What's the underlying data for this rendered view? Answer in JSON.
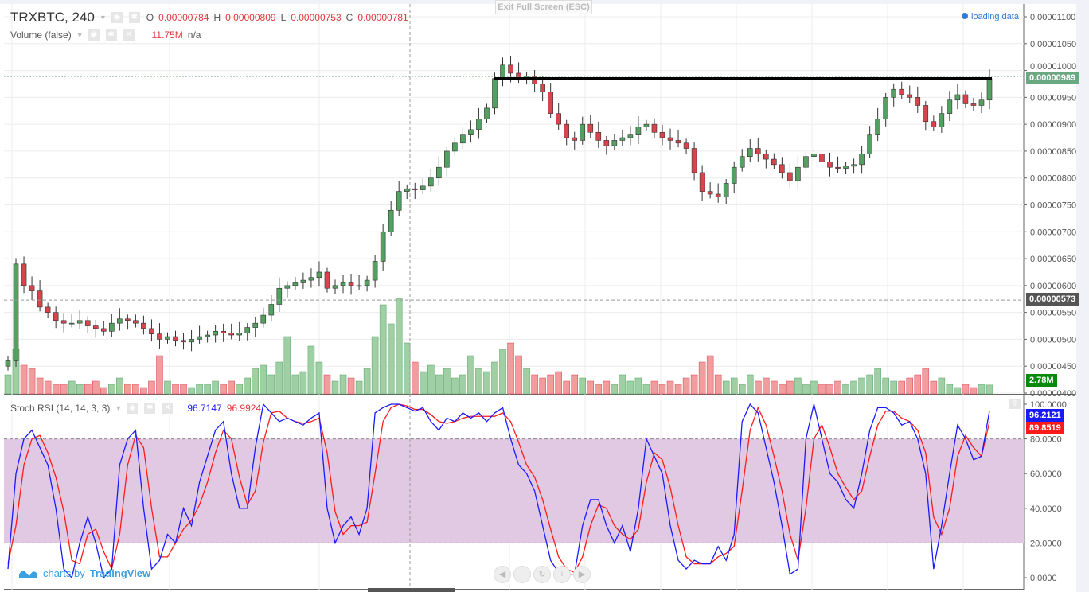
{
  "header": {
    "symbol": "TRXBTC, 240",
    "o_label": "O",
    "o": "0.00000784",
    "h_label": "H",
    "h": "0.00000809",
    "l_label": "L",
    "l": "0.00000753",
    "c_label": "C",
    "c": "0.00000781"
  },
  "volume_legend": {
    "title": "Volume (false)",
    "value": "11.75M",
    "extra": "n/a"
  },
  "stoch_legend": {
    "title": "Stoch RSI (14, 14, 3, 3)",
    "k": "96.7147",
    "d": "96.9924"
  },
  "exit_fullscreen": "Exit Full Screen (ESC)",
  "loading": "loading data",
  "branding": {
    "prefix": "charts by",
    "name": "TradingView"
  },
  "badges": {
    "last_price": "0.00000989",
    "crosshair_price": "0.00000573",
    "volume": "2.78M",
    "k": "96.2121",
    "d": "89.8519"
  },
  "colors": {
    "up": "#53a05f",
    "down": "#d9434b",
    "k": "#1a1aff",
    "d": "#ff1a1a",
    "band": "#e1c9e3",
    "last_price": "#6aa882",
    "volume_badge": "#0a8a0a"
  },
  "chart_data": [
    {
      "type": "candlestick",
      "title": "TRXBTC, 240",
      "ylim": [
        4e-06,
        1.1e-05
      ],
      "y_ticks": [
        "0.00001100",
        "0.00001050",
        "0.00001000",
        "0.00000950",
        "0.00000900",
        "0.00000850",
        "0.00000800",
        "0.00000750",
        "0.00000700",
        "0.00000650",
        "0.00000600",
        "0.00000550",
        "0.00000500",
        "0.00000450",
        "0.00000400"
      ],
      "close": [
        460,
        640,
        600,
        590,
        560,
        550,
        535,
        530,
        530,
        535,
        525,
        520,
        515,
        530,
        538,
        535,
        530,
        520,
        510,
        500,
        505,
        498,
        495,
        500,
        505,
        508,
        515,
        512,
        508,
        512,
        522,
        530,
        545,
        565,
        595,
        600,
        605,
        610,
        615,
        625,
        595,
        600,
        605,
        600,
        600,
        610,
        645,
        700,
        740,
        775,
        780,
        778,
        785,
        800,
        820,
        850,
        865,
        880,
        890,
        910,
        930,
        985,
        1010,
        995,
        985,
        990,
        975,
        960,
        920,
        900,
        875,
        870,
        900,
        885,
        870,
        860,
        870,
        875,
        880,
        895,
        900,
        885,
        875,
        870,
        865,
        855,
        810,
        775,
        770,
        765,
        790,
        820,
        840,
        855,
        845,
        835,
        825,
        810,
        795,
        820,
        840,
        845,
        830,
        820,
        818,
        822,
        825,
        845,
        880,
        910,
        950,
        965,
        955,
        950,
        935,
        905,
        895,
        920,
        945,
        955,
        938,
        935,
        945,
        985
      ],
      "close_unit": "1e-8 BTC",
      "horizontal_line_price": 9.85e-06,
      "last_price": 9.89e-06,
      "crosshair_price": 5.73e-06
    },
    {
      "type": "bar",
      "title": "Volume (false)",
      "unit": "M",
      "values": [
        6,
        14,
        9,
        8,
        5,
        4,
        3,
        3,
        4,
        3,
        3,
        4,
        2,
        3,
        5,
        3,
        3,
        2,
        4,
        12,
        4,
        3,
        3,
        2,
        3,
        3,
        4,
        3,
        4,
        3,
        5,
        8,
        9,
        6,
        10,
        18,
        6,
        7,
        15,
        10,
        6,
        4,
        6,
        5,
        4,
        8,
        18,
        28,
        22,
        30,
        16,
        10,
        7,
        9,
        6,
        8,
        5,
        6,
        12,
        8,
        7,
        10,
        14,
        16,
        12,
        8,
        6,
        5,
        6,
        7,
        4,
        6,
        5,
        4,
        3,
        4,
        3,
        6,
        4,
        5,
        3,
        4,
        3,
        4,
        3,
        5,
        6,
        10,
        12,
        6,
        4,
        5,
        3,
        6,
        4,
        5,
        4,
        3,
        4,
        5,
        3,
        4,
        3,
        3,
        4,
        3,
        4,
        5,
        6,
        8,
        5,
        4,
        4,
        5,
        6,
        8,
        4,
        5,
        3,
        2,
        3,
        2,
        3,
        2.78
      ]
    },
    {
      "type": "line",
      "title": "Stoch RSI (14, 14, 3, 3)",
      "ylim": [
        0,
        100
      ],
      "y_ticks": [
        "100.0000",
        "80.0000",
        "60.0000",
        "40.0000",
        "20.0000",
        "0.0000"
      ],
      "bands": [
        20,
        80
      ],
      "series": [
        {
          "values": [
            5,
            60,
            80,
            85,
            75,
            65,
            40,
            5,
            0,
            20,
            35,
            20,
            0,
            5,
            65,
            80,
            85,
            40,
            5,
            10,
            25,
            20,
            40,
            30,
            55,
            70,
            85,
            90,
            60,
            40,
            40,
            75,
            100,
            95,
            90,
            92,
            90,
            88,
            92,
            95,
            40,
            20,
            30,
            35,
            25,
            40,
            95,
            98,
            100,
            100,
            98,
            96,
            98,
            90,
            85,
            92,
            90,
            95,
            92,
            95,
            90,
            95,
            98,
            80,
            65,
            60,
            50,
            30,
            10,
            3,
            2,
            2,
            30,
            45,
            45,
            30,
            20,
            30,
            15,
            40,
            80,
            70,
            60,
            30,
            10,
            5,
            10,
            8,
            8,
            18,
            10,
            25,
            90,
            100,
            95,
            75,
            55,
            30,
            2,
            5,
            80,
            100,
            80,
            60,
            55,
            45,
            40,
            60,
            85,
            98,
            98,
            95,
            88,
            90,
            80,
            60,
            5,
            30,
            60,
            88,
            80,
            68,
            70,
            96.21
          ]
        },
        {
          "values": [
            8,
            30,
            65,
            80,
            82,
            72,
            58,
            38,
            10,
            8,
            25,
            28,
            15,
            5,
            25,
            65,
            82,
            75,
            40,
            12,
            12,
            20,
            28,
            33,
            42,
            55,
            72,
            85,
            80,
            58,
            42,
            50,
            78,
            95,
            96,
            92,
            90,
            89,
            90,
            92,
            72,
            38,
            25,
            30,
            30,
            32,
            60,
            90,
            98,
            100,
            99,
            97,
            97,
            94,
            90,
            89,
            90,
            92,
            93,
            93,
            93,
            93,
            95,
            90,
            78,
            65,
            58,
            45,
            28,
            12,
            5,
            3,
            12,
            30,
            42,
            40,
            30,
            25,
            22,
            28,
            55,
            72,
            68,
            52,
            30,
            12,
            8,
            8,
            8,
            12,
            14,
            18,
            50,
            85,
            98,
            88,
            70,
            50,
            25,
            10,
            40,
            80,
            88,
            75,
            60,
            52,
            45,
            50,
            70,
            88,
            96,
            96,
            92,
            90,
            85,
            72,
            35,
            25,
            40,
            70,
            82,
            75,
            70,
            89.85
          ]
        }
      ]
    }
  ]
}
